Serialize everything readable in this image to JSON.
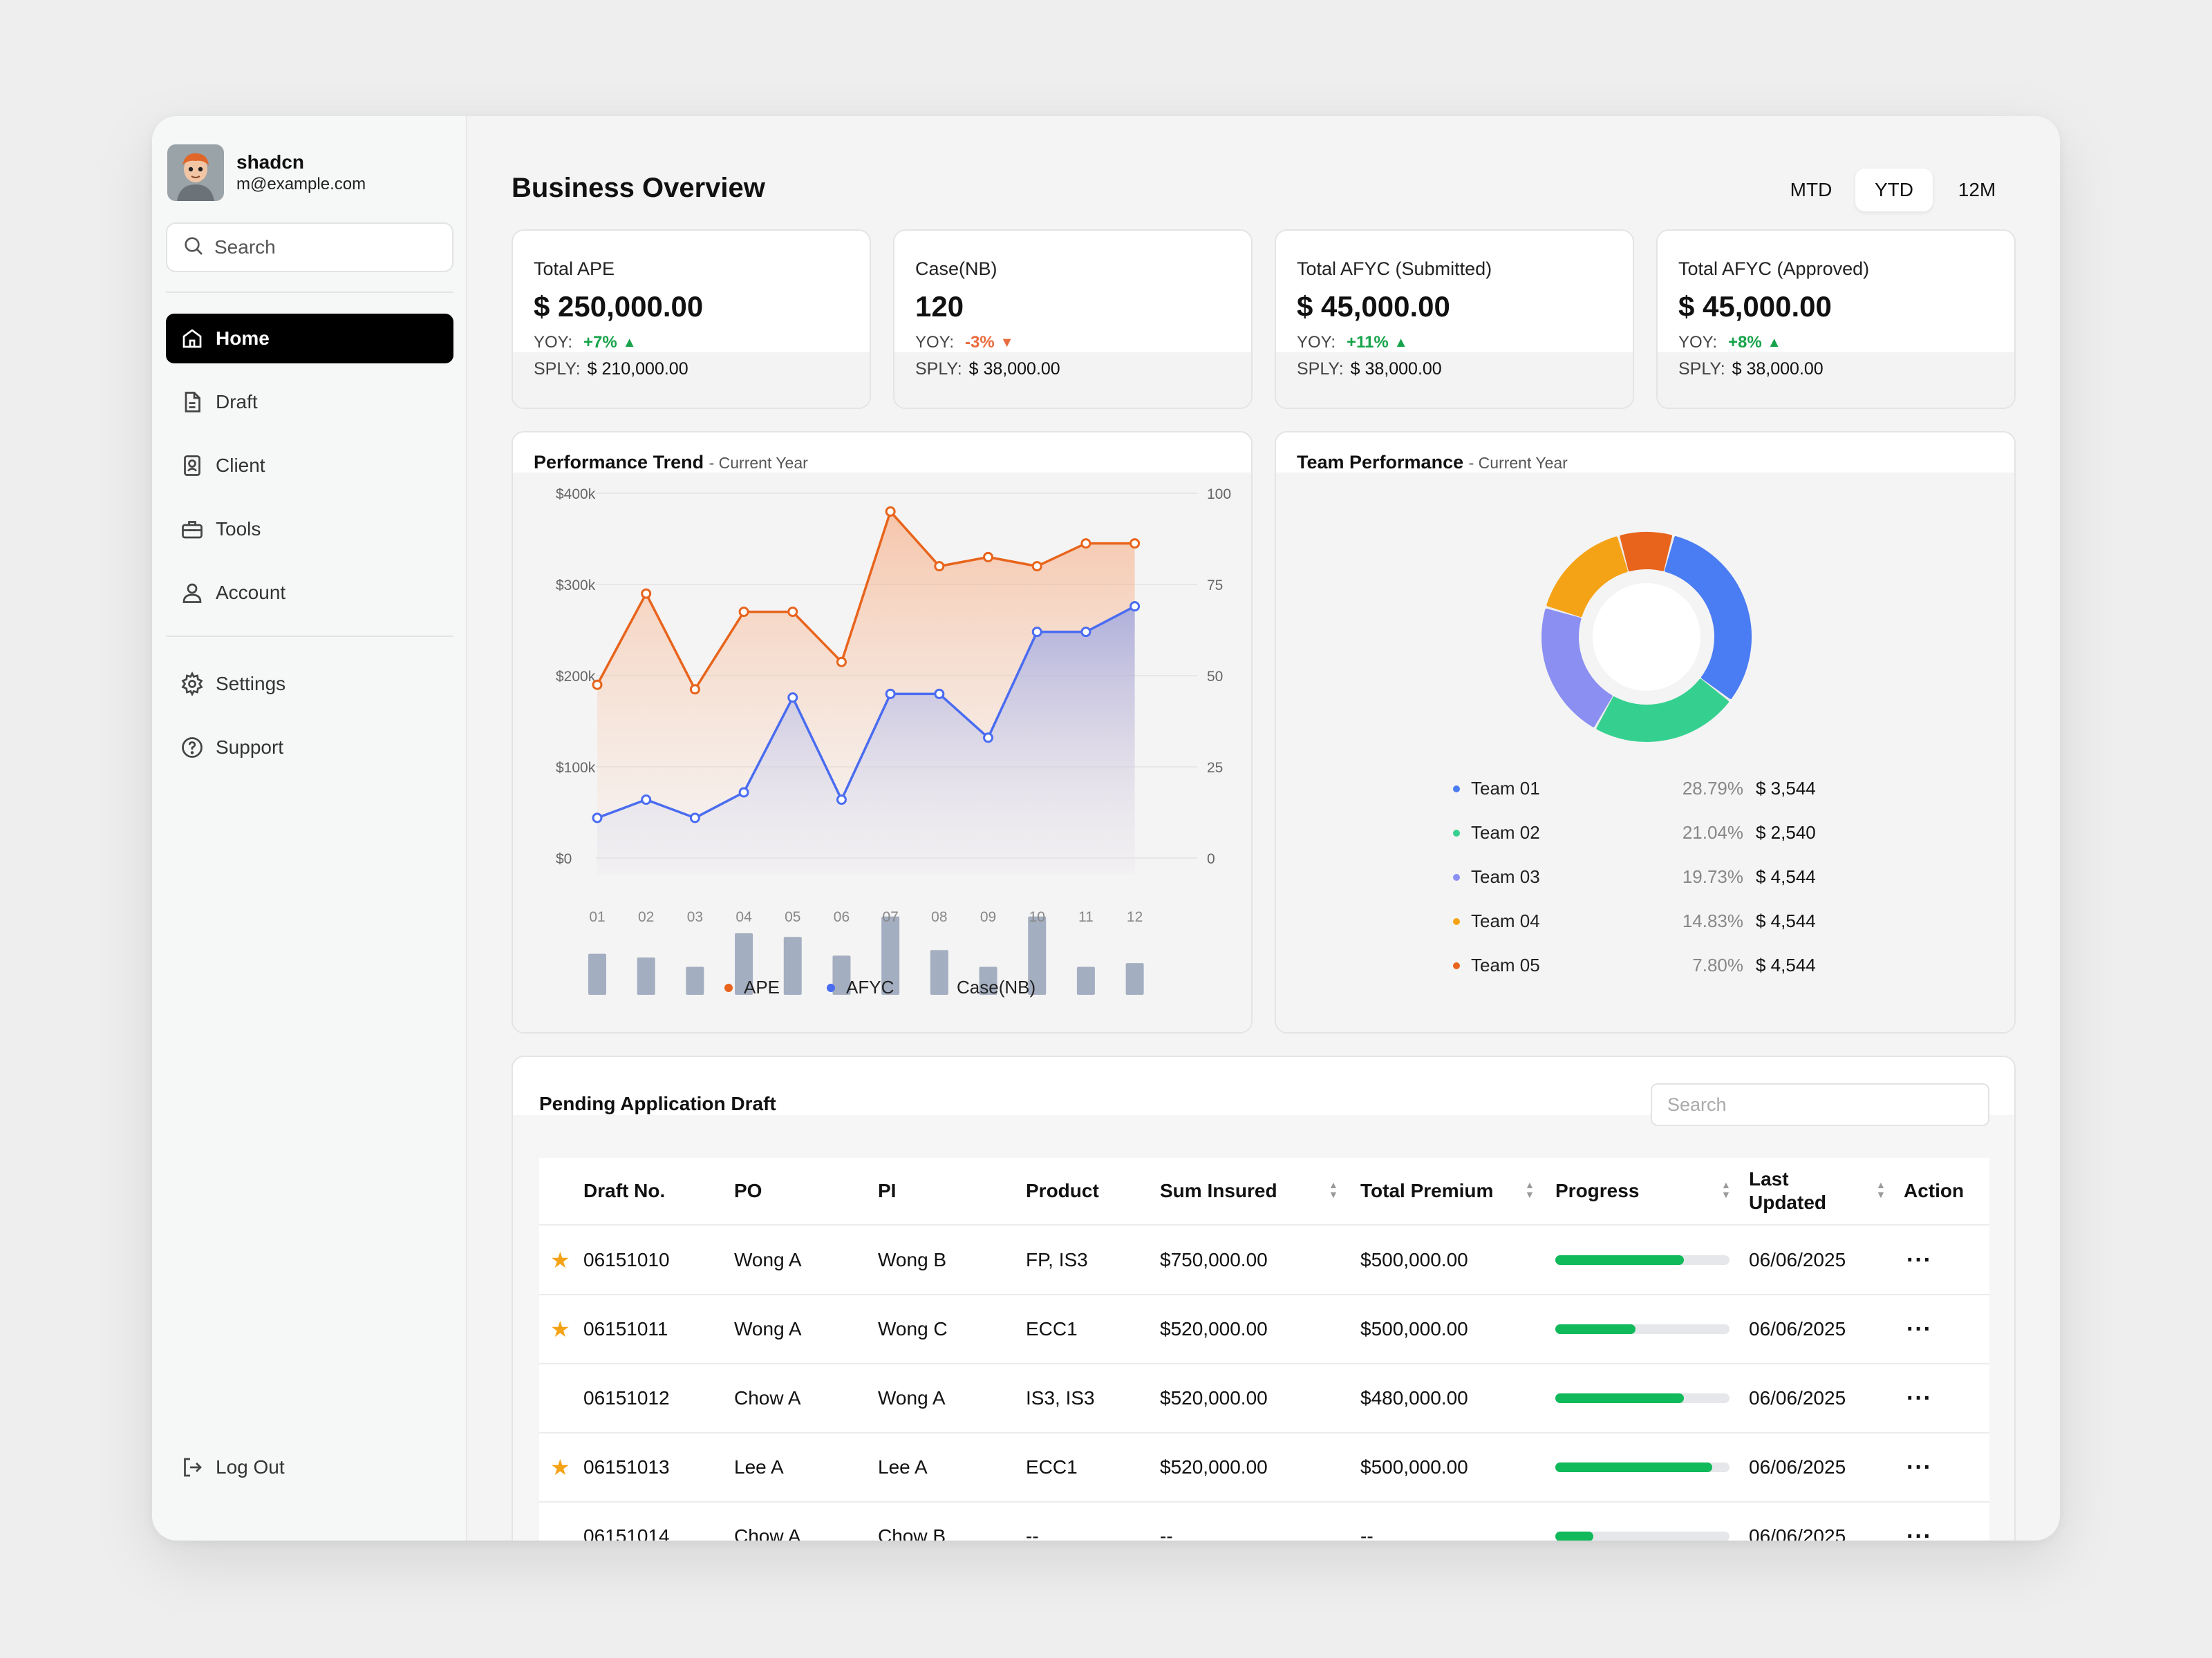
{
  "user": {
    "name": "shadcn",
    "email": "m@example.com"
  },
  "sidebar": {
    "search_placeholder": "Search",
    "items": [
      {
        "label": "Home",
        "icon": "home-icon",
        "active": true
      },
      {
        "label": "Draft",
        "icon": "file-icon"
      },
      {
        "label": "Client",
        "icon": "contact-icon"
      },
      {
        "label": "Tools",
        "icon": "toolbox-icon"
      },
      {
        "label": "Account",
        "icon": "user-icon"
      }
    ],
    "secondary": [
      {
        "label": "Settings",
        "icon": "gear-icon"
      },
      {
        "label": "Support",
        "icon": "help-icon"
      }
    ],
    "logout": "Log Out"
  },
  "header": {
    "title": "Business Overview",
    "ranges": [
      "MTD",
      "YTD",
      "12M"
    ],
    "active_range": "YTD"
  },
  "kpis": [
    {
      "label": "Total APE",
      "value": "$ 250,000.00",
      "yoy_label": "YOY:",
      "yoy": "+7%",
      "trend": "up",
      "sply_label": "SPLY:",
      "sply": "$ 210,000.00"
    },
    {
      "label": "Case(NB)",
      "value": "120",
      "yoy_label": "YOY:",
      "yoy": "-3%",
      "trend": "down",
      "sply_label": "SPLY:",
      "sply": "$ 38,000.00"
    },
    {
      "label": "Total AFYC (Submitted)",
      "value": "$ 45,000.00",
      "yoy_label": "YOY:",
      "yoy": "+11%",
      "trend": "up",
      "sply_label": "SPLY:",
      "sply": "$ 38,000.00"
    },
    {
      "label": "Total AFYC (Approved)",
      "value": "$ 45,000.00",
      "yoy_label": "YOY:",
      "yoy": "+8%",
      "trend": "up",
      "sply_label": "SPLY:",
      "sply": "$ 38,000.00"
    }
  ],
  "trend": {
    "title": "Performance Trend",
    "subtitle": "- Current Year",
    "legend": [
      "APE",
      "AFYC",
      "Case(NB)"
    ]
  },
  "team": {
    "title": "Team Performance",
    "subtitle": "- Current Year"
  },
  "chart_data": [
    {
      "type": "line",
      "title": "Performance Trend",
      "x": [
        "01",
        "02",
        "03",
        "04",
        "05",
        "06",
        "07",
        "08",
        "09",
        "10",
        "11",
        "12"
      ],
      "y_left_ticks": [
        "$400k",
        "$300k",
        "$200k",
        "$100k",
        "$0"
      ],
      "y_right_ticks": [
        "100",
        "75",
        "50",
        "25",
        "0"
      ],
      "ylim_left": [
        0,
        400000
      ],
      "ylim_right": [
        0,
        100
      ],
      "series": [
        {
          "name": "APE",
          "axis": "left",
          "color": "#e8641c",
          "area": true,
          "values": [
            190000,
            290000,
            185000,
            270000,
            270000,
            215000,
            380000,
            320000,
            330000,
            320000,
            345000,
            345000
          ]
        },
        {
          "name": "AFYC",
          "axis": "right",
          "color": "#4a6cf0",
          "area": true,
          "values": [
            11,
            16,
            11,
            18,
            44,
            16,
            45,
            45,
            33,
            62,
            62,
            69
          ]
        },
        {
          "name": "Case(NB)",
          "type": "bar",
          "color": "#a4aec1",
          "scale": "bottom-band",
          "values": [
            22,
            20,
            15,
            33,
            31,
            21,
            42,
            24,
            15,
            42,
            15,
            17
          ]
        }
      ]
    },
    {
      "type": "pie",
      "title": "Team Performance",
      "donut": true,
      "slices": [
        {
          "name": "Team 01",
          "percent": 28.79,
          "amount": "$ 3,544",
          "pct_label": "28.79%",
          "color": "#4a7cf3"
        },
        {
          "name": "Team 02",
          "percent": 21.04,
          "amount": "$ 2,540",
          "pct_label": "21.04%",
          "color": "#35d08f"
        },
        {
          "name": "Team 03",
          "percent": 19.73,
          "amount": "$ 4,544",
          "pct_label": "19.73%",
          "color": "#8b8ff2"
        },
        {
          "name": "Team 04",
          "percent": 14.83,
          "amount": "$ 4,544",
          "pct_label": "14.83%",
          "color": "#f5a316"
        },
        {
          "name": "Team 05",
          "percent": 7.8,
          "amount": "$ 4,544",
          "pct_label": "7.80%",
          "color": "#e8641c"
        }
      ]
    }
  ],
  "table": {
    "title": "Pending Application Draft",
    "search_placeholder": "Search",
    "columns": [
      "Draft No.",
      "PO",
      "PI",
      "Product",
      "Sum Insured",
      "Total Premium",
      "Progress",
      "Last Updated",
      "Action"
    ],
    "rows": [
      {
        "starred": true,
        "draft": "06151010",
        "po": "Wong A",
        "pi": "Wong B",
        "product": "FP, IS3",
        "sum": "$750,000.00",
        "premium": "$500,000.00",
        "progress": 0.74,
        "updated": "06/06/2025"
      },
      {
        "starred": true,
        "draft": "06151011",
        "po": "Wong A",
        "pi": "Wong C",
        "product": "ECC1",
        "sum": "$520,000.00",
        "premium": "$500,000.00",
        "progress": 0.46,
        "updated": "06/06/2025"
      },
      {
        "starred": false,
        "draft": "06151012",
        "po": "Chow A",
        "pi": "Wong A",
        "product": "IS3, IS3",
        "sum": "$520,000.00",
        "premium": "$480,000.00",
        "progress": 0.74,
        "updated": "06/06/2025"
      },
      {
        "starred": true,
        "draft": "06151013",
        "po": "Lee A",
        "pi": "Lee A",
        "product": "ECC1",
        "sum": "$520,000.00",
        "premium": "$500,000.00",
        "progress": 0.9,
        "updated": "06/06/2025"
      },
      {
        "starred": false,
        "draft": "06151014",
        "po": "Chow A",
        "pi": "Chow B",
        "product": "--",
        "sum": "--",
        "premium": "--",
        "progress": 0.22,
        "updated": "06/06/2025"
      }
    ],
    "action_glyph": "···"
  }
}
